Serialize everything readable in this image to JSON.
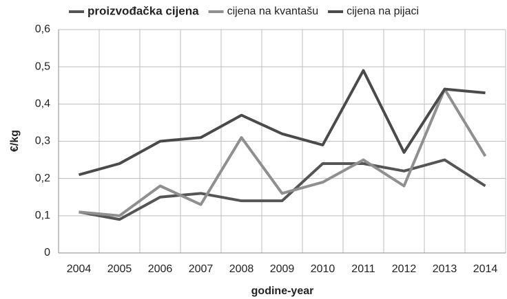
{
  "chart_data": {
    "type": "line",
    "xlabel": "godine-year",
    "ylabel": "€/kg",
    "categories": [
      "2004",
      "2005",
      "2006",
      "2007",
      "2008",
      "2009",
      "2010",
      "2011",
      "2012",
      "2013",
      "2014"
    ],
    "series": [
      {
        "name": "proizvođačka cijena",
        "color": "#555555",
        "values": [
          0.11,
          0.09,
          0.15,
          0.16,
          0.14,
          0.14,
          0.24,
          0.24,
          0.22,
          0.25,
          0.18
        ]
      },
      {
        "name": "cijena na kvantašu",
        "color": "#8f8f8f",
        "values": [
          0.11,
          0.1,
          0.18,
          0.13,
          0.31,
          0.16,
          0.19,
          0.25,
          0.18,
          0.44,
          0.26
        ]
      },
      {
        "name": "cijena na pijaci",
        "color": "#4a4a4a",
        "values": [
          0.21,
          0.24,
          0.3,
          0.31,
          0.37,
          0.32,
          0.29,
          0.49,
          0.27,
          0.44,
          0.43
        ]
      }
    ],
    "ylim": [
      0,
      0.6
    ],
    "yticks": [
      0,
      {
        "value": 0.1,
        "label": "0,1"
      },
      {
        "value": 0.2,
        "label": "0,2"
      },
      {
        "value": 0.3,
        "label": "0,3"
      },
      {
        "value": 0.4,
        "label": "0,4"
      },
      {
        "value": 0.5,
        "label": "0,5"
      },
      {
        "value": 0.6,
        "label": "0,6"
      }
    ],
    "grid": true,
    "legend": "top"
  }
}
